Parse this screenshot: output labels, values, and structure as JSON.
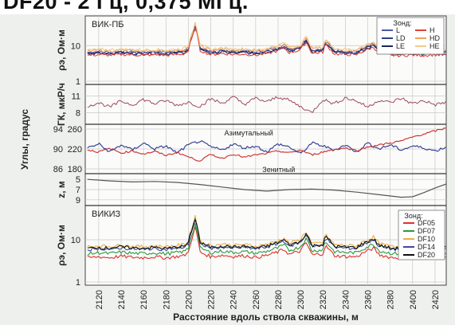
{
  "header": {
    "text": "DF20 - 2 Гц, 0,375 МГц."
  },
  "chart_data": {
    "type": "line",
    "xlabel": "Расстояние вдоль ствола скважины, м",
    "x_ticks": [
      2120,
      2140,
      2160,
      2180,
      2200,
      2220,
      2240,
      2260,
      2280,
      2300,
      2320,
      2340,
      2360,
      2380,
      2400,
      2420
    ],
    "xlim": [
      2108,
      2430
    ],
    "panels": [
      {
        "id": "vik-pb",
        "panel_title": "ВИК-ПБ",
        "ylabel": "ρэ, Ом·м",
        "y_ticks": [
          {
            "value": 10,
            "label": "10"
          },
          {
            "value": 1,
            "label": "1"
          }
        ],
        "log": true,
        "legend_title": "Зонд:",
        "series": [
          {
            "name": "L",
            "color": "#4a5aa8"
          },
          {
            "name": "LD",
            "color": "#2c3f8c"
          },
          {
            "name": "LE",
            "color": "#1b2560"
          },
          {
            "name": "H",
            "color": "#e0403a"
          },
          {
            "name": "HD",
            "color": "#f2a15a"
          },
          {
            "name": "HE",
            "color": "#f4c98a"
          }
        ],
        "profile": {
          "x": [
            2110,
            2120,
            2130,
            2140,
            2150,
            2160,
            2170,
            2180,
            2190,
            2196,
            2200,
            2204,
            2206,
            2210,
            2220,
            2230,
            2240,
            2250,
            2260,
            2270,
            2280,
            2285,
            2290,
            2300,
            2305,
            2310,
            2320,
            2322,
            2330,
            2340,
            2350,
            2360,
            2365,
            2370,
            2380,
            2390,
            2400,
            2410,
            2420,
            2430
          ],
          "y": [
            6.5,
            6.8,
            6.6,
            6.9,
            6.7,
            6.6,
            6.8,
            6.5,
            6.9,
            7.2,
            8.5,
            22.0,
            38.0,
            9.0,
            6.8,
            7.4,
            6.9,
            7.1,
            6.6,
            7.3,
            8.8,
            10.5,
            7.8,
            9.2,
            15.0,
            7.4,
            8.0,
            13.0,
            7.2,
            6.9,
            6.8,
            9.5,
            11.0,
            7.6,
            6.6,
            6.4,
            6.7,
            6.5,
            6.8,
            6.6
          ]
        }
      },
      {
        "id": "gk",
        "ylabel": "ГК, мкР/ч",
        "y_ticks": [
          {
            "value": 11,
            "label": "11"
          },
          {
            "value": 8,
            "label": "8"
          }
        ],
        "ylim": [
          6.5,
          12.5
        ],
        "series": [
          {
            "name": "ГК",
            "color": "#a04a5a"
          }
        ],
        "profile": {
          "x": [
            2110,
            2120,
            2130,
            2140,
            2150,
            2160,
            2170,
            2180,
            2190,
            2200,
            2210,
            2220,
            2230,
            2240,
            2250,
            2260,
            2270,
            2280,
            2290,
            2300,
            2310,
            2320,
            2330,
            2340,
            2350,
            2360,
            2370,
            2380,
            2390,
            2400,
            2410,
            2420,
            2430
          ],
          "y": [
            9.2,
            9.8,
            9.0,
            10.1,
            9.4,
            10.4,
            9.6,
            10.2,
            9.3,
            9.9,
            9.1,
            10.5,
            9.7,
            10.8,
            9.5,
            10.6,
            9.9,
            10.9,
            10.2,
            9.1,
            8.0,
            10.4,
            9.6,
            10.7,
            10.1,
            9.0,
            10.3,
            9.8,
            10.6,
            9.6,
            10.2,
            9.4,
            9.9
          ]
        }
      },
      {
        "id": "angles",
        "ylabel": "Углы, градус",
        "right_ticks": [
          {
            "value": 260,
            "label": "260"
          },
          {
            "value": 220,
            "label": "220"
          },
          {
            "value": 180,
            "label": "180"
          }
        ],
        "left_ticks": [
          {
            "value": 94,
            "label": "94"
          },
          {
            "value": 90,
            "label": "90"
          },
          {
            "value": 86,
            "label": "86"
          }
        ],
        "left_tick_color": "#cc2020",
        "series": [
          {
            "name": "Азимутальный",
            "color": "#2a3890",
            "x": [
              2110,
              2120,
              2130,
              2140,
              2150,
              2160,
              2170,
              2180,
              2190,
              2200,
              2210,
              2220,
              2230,
              2240,
              2250,
              2260,
              2270,
              2280,
              2290,
              2300,
              2310,
              2320,
              2330,
              2340,
              2350,
              2360,
              2370,
              2380,
              2390,
              2400,
              2410,
              2420,
              2430
            ],
            "y": [
              222,
              230,
              214,
              228,
              218,
              232,
              220,
              226,
              212,
              228,
              236,
              224,
              218,
              230,
              222,
              226,
              214,
              230,
              224,
              210,
              232,
              226,
              218,
              228,
              214,
              232,
              220,
              228,
              218,
              226,
              222,
              216,
              224
            ]
          },
          {
            "name": "Зенитный",
            "color": "#cc2a2a",
            "x": [
              2110,
              2120,
              2130,
              2140,
              2150,
              2160,
              2170,
              2180,
              2190,
              2200,
              2210,
              2220,
              2230,
              2240,
              2250,
              2260,
              2270,
              2280,
              2290,
              2300,
              2310,
              2320,
              2330,
              2340,
              2350,
              2360,
              2370,
              2380,
              2390,
              2400,
              2410,
              2420,
              2430
            ],
            "y": [
              89.8,
              89.4,
              90.1,
              89.2,
              89.6,
              89.0,
              89.5,
              88.7,
              89.3,
              88.4,
              87.6,
              88.9,
              88.1,
              89.0,
              88.3,
              88.8,
              89.1,
              89.6,
              89.2,
              89.8,
              88.8,
              89.4,
              89.9,
              90.2,
              89.7,
              90.4,
              90.8,
              91.2,
              91.6,
              92.4,
              93.0,
              93.6,
              94.2
            ]
          }
        ]
      },
      {
        "id": "z",
        "ylabel": "z, м",
        "y_ticks": [
          {
            "value": 5,
            "label": "5"
          },
          {
            "value": 7,
            "label": "7"
          },
          {
            "value": 9,
            "label": "9"
          }
        ],
        "ylim": [
          4.5,
          9.5
        ],
        "inverted": true,
        "series": [
          {
            "name": "z",
            "color": "#555555"
          }
        ],
        "profile": {
          "x": [
            2110,
            2130,
            2150,
            2170,
            2190,
            2210,
            2230,
            2250,
            2270,
            2290,
            2310,
            2330,
            2350,
            2370,
            2390,
            2400,
            2410,
            2420,
            2430
          ],
          "y": [
            5.0,
            5.3,
            5.5,
            5.4,
            5.6,
            6.0,
            6.5,
            7.0,
            7.3,
            7.0,
            6.9,
            7.1,
            7.5,
            8.0,
            8.5,
            8.4,
            7.6,
            6.7,
            5.9
          ]
        }
      },
      {
        "id": "vikiz",
        "panel_title": "ВИКИЗ",
        "ylabel": "ρэ, Ом·м",
        "y_ticks": [
          {
            "value": 10,
            "label": "10"
          },
          {
            "value": 1,
            "label": "1"
          }
        ],
        "log": true,
        "legend_title": "Зонд:",
        "series": [
          {
            "name": "DF05",
            "color": "#e0302a"
          },
          {
            "name": "DF07",
            "color": "#2a9a40"
          },
          {
            "name": "DF10",
            "color": "#e8b040"
          },
          {
            "name": "DF14",
            "color": "#3a4aa0"
          },
          {
            "name": "DF20",
            "color": "#111111"
          }
        ],
        "profile": {
          "x": [
            2110,
            2120,
            2130,
            2140,
            2150,
            2160,
            2170,
            2180,
            2190,
            2196,
            2200,
            2204,
            2206,
            2210,
            2220,
            2230,
            2240,
            2250,
            2260,
            2270,
            2280,
            2285,
            2290,
            2300,
            2305,
            2310,
            2320,
            2322,
            2330,
            2340,
            2350,
            2360,
            2365,
            2370,
            2380,
            2390,
            2400,
            2410,
            2420,
            2430
          ],
          "y": [
            6.2,
            6.6,
            6.3,
            6.8,
            6.4,
            6.3,
            6.6,
            6.2,
            6.7,
            7.0,
            8.4,
            20.0,
            32.0,
            8.5,
            6.6,
            7.2,
            6.7,
            7.0,
            6.4,
            7.1,
            8.6,
            10.0,
            7.5,
            9.0,
            14.0,
            7.2,
            7.8,
            12.0,
            7.0,
            6.7,
            6.6,
            9.2,
            10.5,
            7.4,
            6.4,
            6.2,
            6.5,
            6.3,
            6.6,
            6.4
          ]
        }
      }
    ]
  }
}
